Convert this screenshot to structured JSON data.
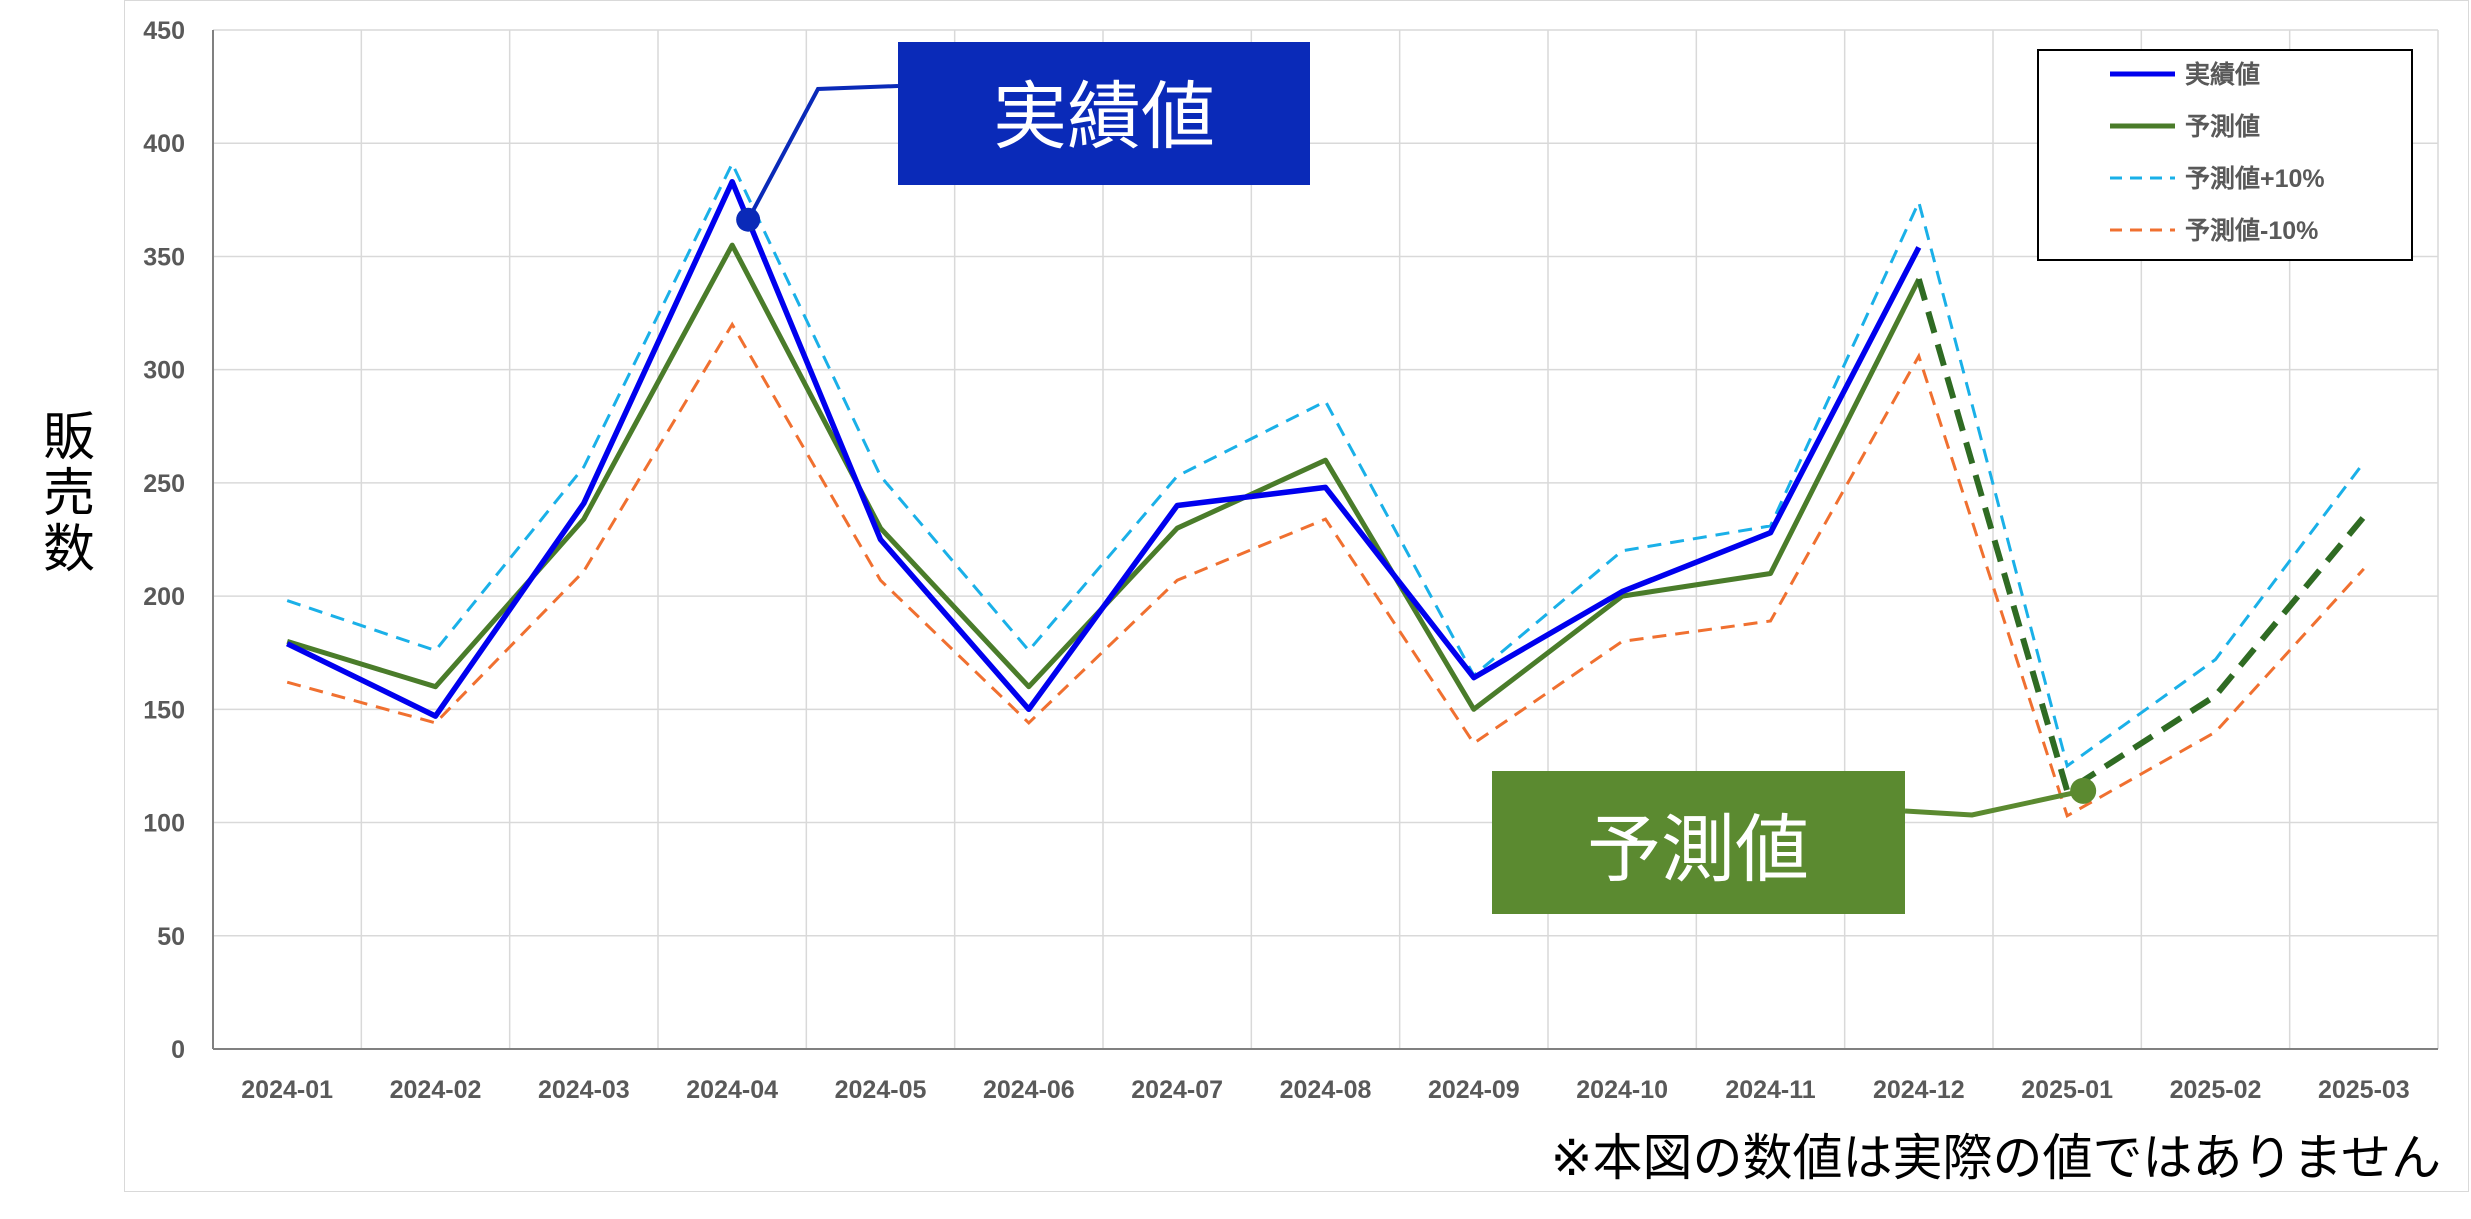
{
  "colors": {
    "actual": "#0000ee",
    "forecast": "#4a7c2a",
    "forecast_future": "#2f6b23",
    "plus10": "#1ab0e8",
    "minus10": "#f07030",
    "callout_actual_bg": "#0a2ab8",
    "callout_forecast_bg": "#5b8a30",
    "grid": "#d9d9d9",
    "axis": "#808080"
  },
  "y_axis_label": "販売数",
  "note": "※本図の数値は実際の値ではありません",
  "callouts": {
    "actual": "実績値",
    "forecast": "予測値"
  },
  "chart_data": {
    "type": "line",
    "categories": [
      "2024-01",
      "2024-02",
      "2024-03",
      "2024-04",
      "2024-05",
      "2024-06",
      "2024-07",
      "2024-08",
      "2024-09",
      "2024-10",
      "2024-11",
      "2024-12",
      "2025-01",
      "2025-02",
      "2025-03"
    ],
    "ylabel": "販売数",
    "ylim": [
      0,
      450
    ],
    "yticks": [
      0,
      50,
      100,
      150,
      200,
      250,
      300,
      350,
      400,
      450
    ],
    "grid": true,
    "legend_position": "top-right",
    "series": [
      {
        "name": "実績値",
        "values": [
          179,
          147,
          241,
          383,
          225,
          150,
          240,
          248,
          164,
          202,
          228,
          354,
          null,
          null,
          null
        ]
      },
      {
        "name": "予測値",
        "values": [
          180,
          160,
          234,
          355,
          230,
          160,
          230,
          260,
          150,
          200,
          210,
          340,
          114,
          156,
          235
        ]
      },
      {
        "name": "予測値+10%",
        "values": [
          198,
          176,
          257,
          391,
          253,
          176,
          253,
          286,
          165,
          220,
          231,
          374,
          125,
          172,
          259
        ]
      },
      {
        "name": "予測値-10%",
        "values": [
          162,
          144,
          211,
          320,
          207,
          144,
          207,
          234,
          135,
          180,
          189,
          306,
          103,
          140,
          212
        ]
      }
    ],
    "forecast_future_from_index": 11
  }
}
